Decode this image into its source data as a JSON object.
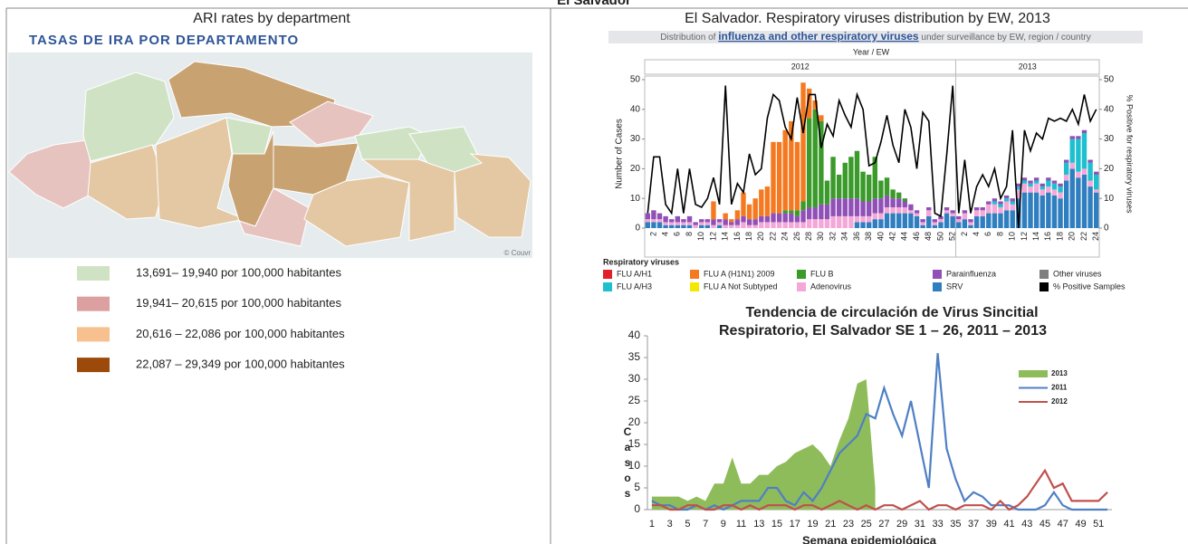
{
  "header": {
    "title": "El Salvador"
  },
  "left_panel": {
    "caption": "ARI rates by department",
    "map_title": "TASAS DE IRA POR DEPARTAMENTO",
    "map_attribution": "© Couvr",
    "legend": [
      {
        "label": "13,691– 19,940 por 100,000 habitantes",
        "color": "#cfe3c4"
      },
      {
        "label": "19,941– 20,615 por 100,000 habitantes",
        "color": "#dda0a0"
      },
      {
        "label": "20,616 – 22,086 por 100,000 habitantes",
        "color": "#f7c08e"
      },
      {
        "label": "22,087 – 29,349 por 100,000 habitantes",
        "color": "#9c4a0c"
      }
    ]
  },
  "right_panel": {
    "caption": "El Salvador. Respiratory viruses distribution by EW, 2013"
  },
  "chart_data": [
    {
      "type": "stacked-bar-line",
      "header": [
        "Distribution of ",
        "influenza and other respiratory viruses",
        " under surveillance by EW, region / country"
      ],
      "x_label": "Year / EW",
      "y_label": "Number of Cases",
      "y2_label": "% Positive for respiratory viruses",
      "legend_title": "Respiratory viruses",
      "groups": [
        {
          "name": "2012",
          "categories": [
            null,
            "2",
            null,
            "4",
            null,
            "6",
            null,
            "8",
            null,
            "10",
            null,
            "12",
            null,
            "14",
            null,
            "16",
            null,
            "18",
            null,
            "20",
            null,
            "22",
            null,
            "24",
            null,
            "26",
            null,
            "28",
            null,
            "30",
            null,
            "32",
            null,
            "34",
            null,
            "36",
            null,
            "38",
            null,
            "40",
            null,
            "42",
            null,
            "44",
            null,
            "46",
            null,
            "48",
            null,
            "50",
            null,
            "52"
          ]
        },
        {
          "name": "2013",
          "categories": [
            null,
            "2",
            null,
            "4",
            null,
            "6",
            null,
            "8",
            null,
            "10",
            null,
            "12",
            null,
            "14",
            null,
            "16",
            null,
            "18",
            null,
            "20",
            null,
            "22",
            null,
            "24"
          ]
        }
      ],
      "ylim": [
        0,
        50
      ],
      "yticks": [
        0,
        10,
        20,
        30,
        40,
        50
      ],
      "y2lim": [
        0,
        50
      ],
      "y2ticks": [
        0,
        10,
        20,
        30,
        40,
        50
      ],
      "series": [
        {
          "name": "FLU A/H1",
          "color": "#e0202a",
          "values": [
            0,
            0,
            0,
            0,
            0,
            0,
            0,
            0,
            0,
            0,
            0,
            0,
            0,
            0,
            0,
            0,
            0,
            0,
            0,
            0,
            0,
            0,
            0,
            0,
            0,
            0,
            0,
            0,
            0,
            0,
            0,
            0,
            0,
            0,
            0,
            0,
            0,
            0,
            0,
            0,
            0,
            0,
            0,
            0,
            0,
            0,
            0,
            0,
            0,
            0,
            0,
            0,
            0,
            0,
            0,
            0,
            0,
            0,
            0,
            0,
            0,
            0,
            0,
            0,
            0,
            0,
            0,
            0,
            0,
            0,
            0,
            0,
            0,
            0,
            0,
            0
          ]
        },
        {
          "name": "FLU A (H1N1) 2009",
          "color": "#f47920",
          "values": [
            0,
            0,
            0,
            0,
            0,
            0,
            0,
            0,
            0,
            0,
            0,
            6,
            0,
            2,
            1,
            3,
            8,
            5,
            7,
            9,
            10,
            24,
            24,
            27,
            30,
            23,
            40,
            10,
            3,
            2,
            0,
            0,
            0,
            0,
            0,
            0,
            0,
            0,
            0,
            0,
            0,
            0,
            0,
            0,
            0,
            0,
            0,
            0,
            0,
            0,
            0,
            0,
            0,
            0,
            0,
            0,
            0,
            0,
            0,
            0,
            0,
            0,
            0,
            0,
            0,
            0,
            0,
            0,
            0,
            0,
            0,
            0,
            0,
            0,
            0,
            0
          ]
        },
        {
          "name": "FLU B",
          "color": "#3a9a2a",
          "values": [
            0,
            0,
            0,
            0,
            0,
            0,
            0,
            0,
            0,
            0,
            0,
            0,
            0,
            0,
            0,
            0,
            0,
            0,
            0,
            0,
            0,
            0,
            0,
            1,
            1,
            2,
            3,
            30,
            33,
            28,
            8,
            14,
            8,
            12,
            14,
            16,
            10,
            9,
            14,
            6,
            6,
            3,
            2,
            1,
            0,
            0,
            0,
            0,
            0,
            0,
            0,
            0,
            0,
            0,
            0,
            0,
            0,
            0,
            0,
            0,
            0,
            0,
            0,
            0,
            0,
            0,
            0,
            0,
            0,
            0,
            0,
            0,
            0,
            0,
            0,
            0
          ]
        },
        {
          "name": "Parainfluenza",
          "color": "#9050b8",
          "values": [
            2,
            3,
            2,
            2,
            1,
            2,
            1,
            2,
            1,
            1,
            1,
            2,
            1,
            2,
            1,
            2,
            2,
            2,
            2,
            2,
            2,
            3,
            3,
            3,
            3,
            2,
            4,
            4,
            4,
            5,
            5,
            6,
            6,
            6,
            6,
            6,
            5,
            5,
            5,
            5,
            4,
            3,
            3,
            2,
            2,
            1,
            1,
            1,
            1,
            1,
            1,
            1,
            1,
            1,
            1,
            1,
            1,
            1,
            1,
            1,
            1,
            1,
            1,
            1,
            1,
            1,
            1,
            1,
            1,
            1,
            1,
            1,
            1,
            1,
            1,
            1
          ]
        },
        {
          "name": "Other viruses",
          "color": "#7f7f7f",
          "values": [
            0,
            0,
            0,
            0,
            0,
            0,
            0,
            0,
            0,
            0,
            0,
            0,
            0,
            0,
            0,
            0,
            0,
            0,
            0,
            0,
            0,
            0,
            0,
            0,
            0,
            0,
            0,
            0,
            0,
            0,
            0,
            0,
            0,
            0,
            0,
            0,
            0,
            0,
            0,
            0,
            0,
            0,
            0,
            0,
            0,
            0,
            0,
            0,
            0,
            0,
            0,
            0,
            0,
            0,
            0,
            0,
            0,
            0,
            0,
            0,
            0,
            0,
            0,
            0,
            0,
            0,
            0,
            0,
            0,
            0,
            0,
            0,
            0,
            0,
            0,
            0
          ]
        },
        {
          "name": "FLU A/H3",
          "color": "#1ec0d0",
          "values": [
            0,
            0,
            0,
            0,
            0,
            0,
            0,
            0,
            0,
            0,
            0,
            0,
            0,
            0,
            0,
            0,
            0,
            0,
            0,
            0,
            0,
            0,
            0,
            0,
            0,
            0,
            0,
            0,
            0,
            0,
            0,
            0,
            0,
            0,
            0,
            0,
            0,
            0,
            0,
            0,
            0,
            0,
            0,
            0,
            0,
            0,
            0,
            0,
            0,
            0,
            0,
            0,
            0,
            0,
            0,
            0,
            0,
            0,
            1,
            1,
            1,
            1,
            1,
            1,
            1,
            1,
            1,
            2,
            2,
            2,
            4,
            8,
            11,
            12,
            6,
            5
          ]
        },
        {
          "name": "FLU A Not Subtyped",
          "color": "#f5e800",
          "values": [
            0,
            0,
            0,
            0,
            0,
            0,
            0,
            0,
            0,
            0,
            0,
            0,
            0,
            0,
            0,
            0,
            0,
            0,
            0,
            0,
            0,
            0,
            0,
            0,
            0,
            0,
            0,
            0,
            0,
            0,
            0,
            0,
            0,
            0,
            0,
            0,
            0,
            0,
            0,
            0,
            0,
            0,
            0,
            0,
            0,
            0,
            0,
            0,
            0,
            0,
            0,
            0,
            0,
            0,
            0,
            0,
            0,
            0,
            0,
            0,
            0,
            0,
            0,
            0,
            0,
            0,
            0,
            0,
            0,
            0,
            0,
            0,
            0,
            0,
            0,
            0
          ]
        },
        {
          "name": "Adenovirus",
          "color": "#f4a8d8",
          "values": [
            1,
            1,
            1,
            1,
            1,
            1,
            1,
            1,
            1,
            1,
            1,
            1,
            1,
            1,
            1,
            1,
            2,
            1,
            1,
            2,
            2,
            2,
            2,
            2,
            2,
            2,
            2,
            3,
            3,
            3,
            3,
            4,
            4,
            4,
            4,
            2,
            2,
            2,
            2,
            2,
            2,
            2,
            2,
            2,
            1,
            1,
            1,
            2,
            1,
            1,
            1,
            1,
            1,
            2,
            1,
            2,
            2,
            3,
            3,
            2,
            3,
            2,
            3,
            3,
            2,
            3,
            2,
            2,
            2,
            2,
            2,
            2,
            2,
            2,
            2,
            1
          ]
        },
        {
          "name": "SRV",
          "color": "#2f7fc0",
          "values": [
            2,
            2,
            2,
            1,
            1,
            1,
            1,
            1,
            0,
            1,
            1,
            0,
            1,
            0,
            0,
            0,
            0,
            0,
            0,
            0,
            0,
            0,
            0,
            0,
            0,
            0,
            0,
            0,
            0,
            0,
            0,
            0,
            0,
            0,
            0,
            2,
            2,
            2,
            3,
            3,
            5,
            5,
            5,
            5,
            5,
            4,
            1,
            4,
            1,
            2,
            5,
            4,
            2,
            3,
            1,
            4,
            4,
            5,
            5,
            5,
            6,
            6,
            10,
            12,
            12,
            12,
            11,
            12,
            11,
            10,
            16,
            20,
            17,
            18,
            14,
            12
          ]
        },
        {
          "name": "% Positive Samples",
          "color": "#000000",
          "axis": "y2",
          "values": [
            5,
            24,
            24,
            8,
            5,
            20,
            5,
            20,
            8,
            7,
            10,
            17,
            8,
            48,
            8,
            15,
            12,
            25,
            18,
            20,
            37,
            45,
            43,
            34,
            30,
            44,
            32,
            45,
            45,
            27,
            35,
            31,
            43,
            38,
            34,
            45,
            40,
            21,
            22,
            29,
            38,
            28,
            22,
            40,
            34,
            20,
            39,
            36,
            5,
            4,
            25,
            48,
            5,
            23,
            5,
            14,
            18,
            14,
            20,
            10,
            14,
            33,
            0,
            33,
            26,
            32,
            30,
            37,
            36,
            37,
            36,
            40,
            35,
            45,
            36,
            40
          ]
        }
      ]
    },
    {
      "type": "line",
      "title": [
        "Tendencia de  circulación de Virus Sincitial",
        "Respiratorio, El Salvador SE 1 – 26, 2011 – 2013"
      ],
      "x_label": "Semana epidemiológica",
      "y_label": "Casos",
      "categories": [
        "1",
        null,
        "3",
        null,
        "5",
        null,
        "7",
        null,
        "9",
        null,
        "11",
        null,
        "13",
        null,
        "15",
        null,
        "17",
        null,
        "19",
        null,
        "21",
        null,
        "23",
        null,
        "25",
        null,
        "27",
        null,
        "29",
        null,
        "31",
        null,
        "33",
        null,
        "35",
        null,
        "37",
        null,
        "39",
        null,
        "41",
        null,
        "43",
        null,
        "45",
        null,
        "47",
        null,
        "49",
        null,
        "51",
        null
      ],
      "ylim": [
        0,
        40
      ],
      "yticks": [
        0,
        5,
        10,
        15,
        20,
        25,
        30,
        35,
        40
      ],
      "series": [
        {
          "name": "2013",
          "type": "area",
          "color": "#8fbc5a",
          "values": [
            3,
            3,
            3,
            3,
            2,
            3,
            2,
            6,
            6,
            12,
            6,
            6,
            8,
            8,
            10,
            11,
            13,
            14,
            15,
            13,
            10,
            16,
            21,
            29,
            30,
            5,
            null,
            null,
            null,
            null,
            null,
            null,
            null,
            null,
            null,
            null,
            null,
            null,
            null,
            null,
            null,
            null,
            null,
            null,
            null,
            null,
            null,
            null,
            null,
            null,
            null,
            null
          ]
        },
        {
          "name": "2011",
          "color": "#4f7fc4",
          "values": [
            2,
            1,
            1,
            0,
            0,
            1,
            0,
            1,
            0,
            1,
            2,
            2,
            2,
            5,
            5,
            2,
            1,
            4,
            2,
            5,
            9,
            13,
            15,
            17,
            22,
            21,
            28,
            22,
            17,
            25,
            15,
            5,
            36,
            14,
            7,
            2,
            4,
            3,
            1,
            1,
            1,
            0,
            0,
            0,
            1,
            4,
            1,
            0,
            0,
            0,
            0,
            0
          ]
        },
        {
          "name": "2012",
          "color": "#c0504d",
          "values": [
            1,
            1,
            0,
            0,
            1,
            1,
            0,
            0,
            1,
            1,
            0,
            1,
            0,
            1,
            1,
            1,
            0,
            1,
            1,
            0,
            1,
            2,
            1,
            0,
            1,
            0,
            1,
            1,
            0,
            1,
            2,
            0,
            1,
            1,
            0,
            1,
            1,
            1,
            0,
            2,
            0,
            1,
            3,
            6,
            9,
            5,
            6,
            2,
            2,
            2,
            2,
            4
          ]
        }
      ]
    }
  ]
}
